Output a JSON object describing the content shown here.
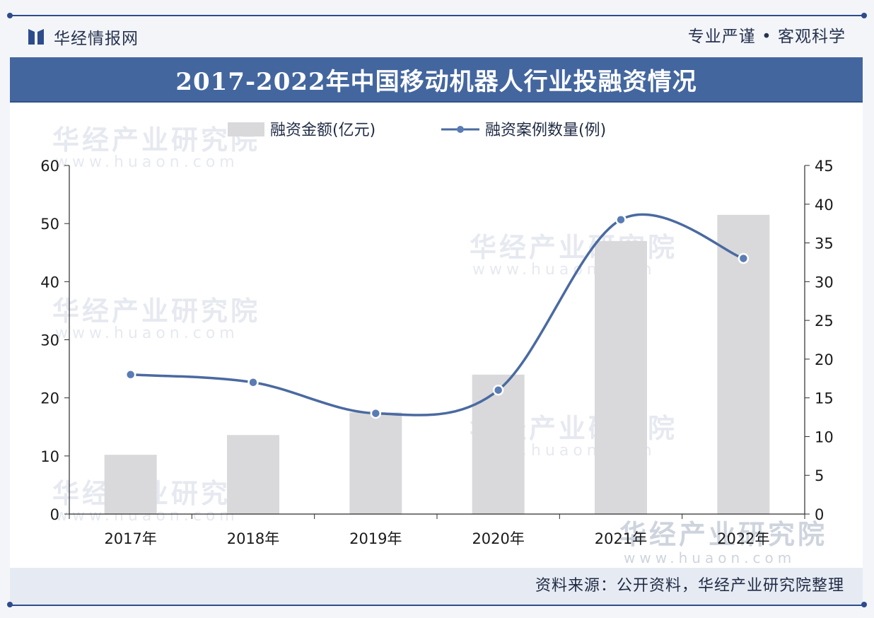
{
  "header": {
    "brand": "华经情报网",
    "motto": "专业严谨 • 客观科学"
  },
  "title": "2017-2022年中国移动机器人行业投融资情况",
  "watermark": {
    "text": "华经产业研究院",
    "url": "www.huaon.com"
  },
  "footer": {
    "source": "资料来源：公开资料，华经产业研究院整理"
  },
  "colors": {
    "accent": "#43669f",
    "bar": "#d9d9db",
    "line": "#4a6aa0",
    "marker": "#5a7cb5"
  },
  "chart_data": {
    "type": "bar",
    "categories": [
      "2017年",
      "2018年",
      "2019年",
      "2020年",
      "2021年",
      "2022年"
    ],
    "series": [
      {
        "name": "融资金额(亿元)",
        "type": "bar",
        "axis": "left",
        "values": [
          10.2,
          13.6,
          17.5,
          24.0,
          47.0,
          51.5
        ]
      },
      {
        "name": "融资案例数量(例)",
        "type": "line",
        "axis": "right",
        "smooth": true,
        "values": [
          18,
          17,
          13,
          16,
          38,
          33
        ]
      }
    ],
    "y_left": {
      "min": 0,
      "max": 60,
      "ticks": [
        0,
        10,
        20,
        30,
        40,
        50,
        60
      ]
    },
    "y_right": {
      "min": 0,
      "max": 45,
      "ticks": [
        0,
        5,
        10,
        15,
        20,
        25,
        30,
        35,
        40,
        45
      ]
    },
    "legend_position": "top-center",
    "grid": false
  }
}
